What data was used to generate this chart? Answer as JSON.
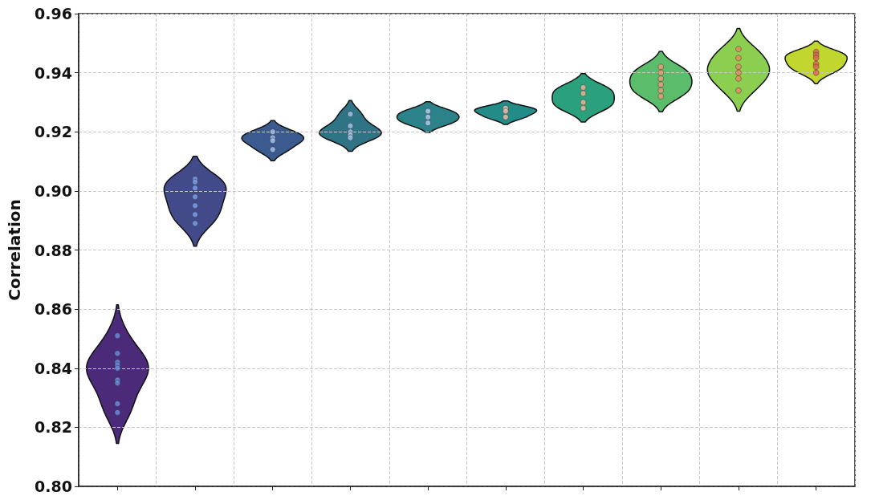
{
  "chart_data": {
    "type": "scatter",
    "ylabel": "Correlation",
    "categories": [
      null,
      null,
      null,
      null,
      null,
      null,
      null,
      null,
      null,
      null
    ],
    "ylim": [
      0.8,
      0.96
    ],
    "yticks": [
      {
        "value": 0.8,
        "label": "0.80"
      },
      {
        "value": 0.82,
        "label": "0.82"
      },
      {
        "value": 0.84,
        "label": "0.84"
      },
      {
        "value": 0.86,
        "label": "0.86"
      },
      {
        "value": 0.88,
        "label": "0.88"
      },
      {
        "value": 0.9,
        "label": "0.90"
      },
      {
        "value": 0.92,
        "label": "0.92"
      },
      {
        "value": 0.94,
        "label": "0.94"
      },
      {
        "value": 0.96,
        "label": "0.96"
      }
    ],
    "grid": true,
    "tick_labels": "y",
    "marker": "circle",
    "series": [
      {
        "colors": [
          "#6a8fe0",
          "#7aa0e8",
          "#a9c4ee",
          "#a9c4ee",
          "#b5cdee",
          "#f0c0b0",
          "#f3b49a",
          "#f09a7a",
          "#ea8463",
          "#e06057"
        ],
        "values": [
          0.851,
          0.904,
          0.92,
          0.926,
          0.927,
          0.928,
          0.935,
          0.942,
          0.948,
          0.947
        ]
      },
      {
        "colors": [
          "#6a8fe0",
          "#7aa0e8",
          "#a9c4ee",
          "#a9c4ee",
          "#b5cdee",
          "#f0c0b0",
          "#f3b49a",
          "#f09a7a",
          "#ea8463",
          "#e06057"
        ],
        "values": [
          0.845,
          0.903,
          0.918,
          0.922,
          0.925,
          0.927,
          0.933,
          0.94,
          0.945,
          0.946
        ]
      },
      {
        "colors": [
          "#6a8fe0",
          "#7aa0e8",
          "#a9c4ee",
          "#a9c4ee",
          "#b5cdee",
          "#f0c0b0",
          "#f3b49a",
          "#f09a7a",
          "#ea8463",
          "#e06057"
        ],
        "values": [
          0.842,
          0.901,
          0.917,
          0.92,
          0.923,
          0.925,
          0.93,
          0.938,
          0.942,
          0.945
        ]
      },
      {
        "colors": [
          "#6a8fe0",
          "#7aa0e8",
          "#a9c4ee",
          "#a9c4ee",
          "#b5cdee",
          "#f0c0b0",
          "#f3b49a",
          "#f09a7a",
          "#ea8463",
          "#e06057"
        ],
        "values": [
          0.841,
          0.898,
          0.914,
          0.919,
          null,
          null,
          0.928,
          0.936,
          0.94,
          0.943
        ]
      },
      {
        "colors": [
          "#6a8fe0",
          "#7aa0e8",
          "#a9c4ee",
          "#a9c4ee",
          "#b5cdee",
          "#f0c0b0",
          "#f3b49a",
          "#f09a7a",
          "#ea8463",
          "#e06057"
        ],
        "values": [
          0.84,
          0.895,
          null,
          0.918,
          null,
          null,
          null,
          0.934,
          0.938,
          0.942
        ]
      },
      {
        "colors": [
          "#6a8fe0",
          "#7aa0e8",
          "#a9c4ee",
          "#a9c4ee",
          "#b5cdee",
          "#f0c0b0",
          "#f3b49a",
          "#f09a7a",
          "#ea8463",
          "#e06057"
        ],
        "values": [
          0.836,
          0.892,
          null,
          null,
          null,
          null,
          null,
          0.932,
          0.934,
          0.94
        ]
      },
      {
        "colors": [
          "#6a8fe0",
          "#7aa0e8",
          "#a9c4ee",
          "#a9c4ee",
          "#b5cdee",
          "#f0c0b0",
          "#f3b49a",
          "#f09a7a",
          "#ea8463",
          "#e06057"
        ],
        "values": [
          0.835,
          0.889,
          null,
          null,
          null,
          null,
          null,
          null,
          null,
          null
        ]
      },
      {
        "colors": [
          "#6a8fe0",
          "#7aa0e8",
          "#a9c4ee",
          "#a9c4ee",
          "#b5cdee",
          "#f0c0b0",
          "#f3b49a",
          "#f09a7a",
          "#ea8463",
          "#e06057"
        ],
        "values": [
          0.828,
          null,
          null,
          null,
          null,
          null,
          null,
          null,
          null,
          null
        ]
      },
      {
        "colors": [
          "#6a8fe0",
          "#7aa0e8",
          "#a9c4ee",
          "#a9c4ee",
          "#b5cdee",
          "#f0c0b0",
          "#f3b49a",
          "#f09a7a",
          "#ea8463",
          "#e06057"
        ],
        "values": [
          0.825,
          null,
          null,
          null,
          null,
          null,
          null,
          null,
          null,
          null
        ]
      }
    ]
  }
}
